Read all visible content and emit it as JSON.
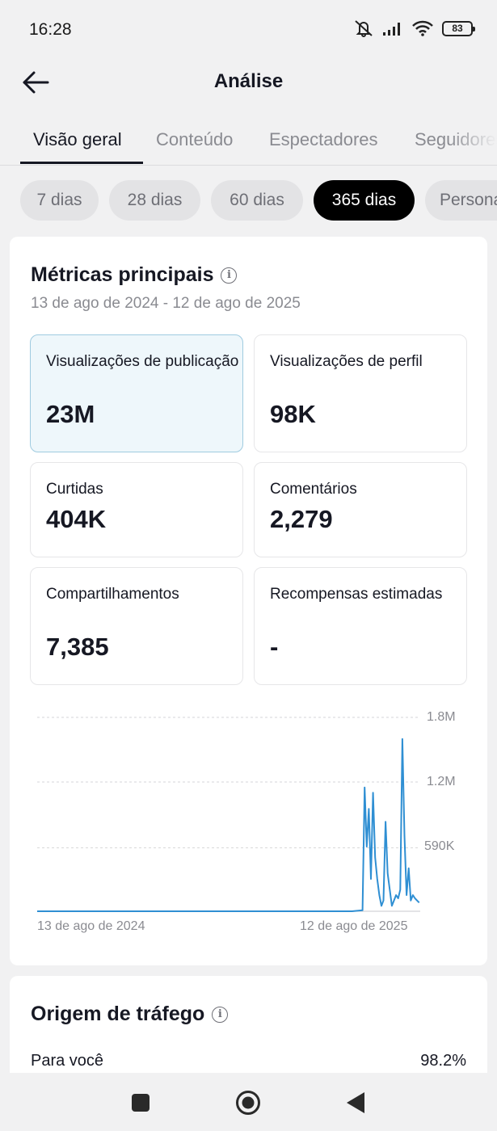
{
  "status_bar": {
    "time": "16:28",
    "battery": "83",
    "icons": [
      "mute-icon",
      "signal-icon",
      "wifi-icon",
      "battery-icon"
    ]
  },
  "header": {
    "title": "Análise",
    "back_icon": "arrow-left-icon"
  },
  "tabs": [
    {
      "label": "Visão geral",
      "active": true
    },
    {
      "label": "Conteúdo",
      "active": false
    },
    {
      "label": "Espectadores",
      "active": false
    },
    {
      "label": "Seguidores",
      "active": false
    }
  ],
  "periods": [
    {
      "label": "7 dias",
      "active": false
    },
    {
      "label": "28 dias",
      "active": false
    },
    {
      "label": "60 dias",
      "active": false
    },
    {
      "label": "365 dias",
      "active": true
    },
    {
      "label": "Personalizado",
      "active": false
    }
  ],
  "key_metrics": {
    "title": "Métricas principais",
    "date_range": "13 de ago de 2024 - 12 de ago de 2025",
    "items": [
      {
        "label": "Visualizações de publicação",
        "value": "23M",
        "selected": true
      },
      {
        "label": "Visualizações de perfil",
        "value": "98K",
        "selected": false
      },
      {
        "label": "Curtidas",
        "value": "404K",
        "selected": false
      },
      {
        "label": "Comentários",
        "value": "2,279",
        "selected": false
      },
      {
        "label": "Compartilhamentos",
        "value": "7,385",
        "selected": false
      },
      {
        "label": "Recompensas estimadas",
        "value": "-",
        "selected": false
      }
    ]
  },
  "chart_data": {
    "type": "line",
    "title": "",
    "xlabel": "",
    "ylabel": "",
    "x_tick_labels": [
      "13 de ago de 2024",
      "12 de ago de 2025"
    ],
    "y_tick_labels": [
      "590K",
      "1.2M",
      "1.8M"
    ],
    "y_ticks": [
      590000,
      1200000,
      1800000
    ],
    "ylim": [
      0,
      1800000
    ],
    "grid": true,
    "line_color": "#2f8fd3",
    "series": [
      {
        "name": "",
        "x": [
          0,
          50,
          100,
          150,
          200,
          250,
          300,
          310,
          312,
          314,
          316,
          318,
          320,
          322,
          324,
          326,
          328,
          330,
          332,
          334,
          336,
          338,
          340,
          342,
          344,
          346,
          348,
          350,
          352,
          354,
          356,
          358,
          360,
          362,
          364
        ],
        "values": [
          0,
          0,
          0,
          0,
          0,
          0,
          0,
          10000,
          1150000,
          600000,
          950000,
          300000,
          1100000,
          500000,
          300000,
          150000,
          50000,
          100000,
          830000,
          350000,
          200000,
          50000,
          100000,
          150000,
          120000,
          200000,
          1600000,
          700000,
          150000,
          400000,
          100000,
          150000,
          120000,
          100000,
          80000
        ]
      }
    ]
  },
  "traffic_source": {
    "title": "Origem de tráfego",
    "items": [
      {
        "label": "Para você",
        "value": "98.2%"
      }
    ]
  },
  "navbar": {
    "buttons": [
      "square-icon",
      "home-circle-icon",
      "back-triangle-icon"
    ]
  }
}
